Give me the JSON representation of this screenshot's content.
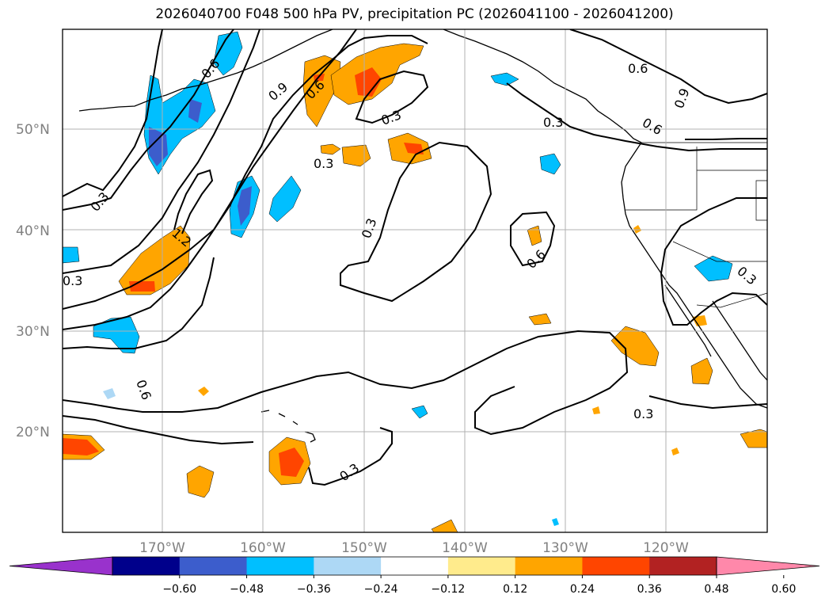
{
  "title": "2026040700 F048 500 hPa PV, precipitation PC (2026041100 - 2026041200)",
  "lat_labels": [
    "50°N",
    "40°N",
    "30°N",
    "20°N"
  ],
  "lon_labels": [
    "170°W",
    "160°W",
    "150°W",
    "140°W",
    "130°W",
    "120°W"
  ],
  "contour_labels": [
    "0.6",
    "0.9",
    "0.6",
    "0.3",
    "0.3",
    "0.6",
    "0.9",
    "0.6",
    "0.3",
    "1.2",
    "0.3",
    "0.3",
    "0.6",
    "0.6",
    "0.3",
    "0.3",
    "0.3",
    "0.3"
  ],
  "colorbar": {
    "ticks": [
      "−0.60",
      "−0.48",
      "−0.36",
      "−0.24",
      "−0.12",
      "0.12",
      "0.24",
      "0.36",
      "0.48",
      "0.60"
    ],
    "colors": [
      "#9932cc",
      "#00008b",
      "#3c5dcc",
      "#00bfff",
      "#add8f5",
      "#ffffff",
      "#ffeb8c",
      "#ffa500",
      "#ff4500",
      "#b22222",
      "#ff88aa"
    ]
  },
  "colors": {
    "land_outline": "#000000",
    "grid": "#b0b0b0",
    "contour": "#000000"
  }
}
